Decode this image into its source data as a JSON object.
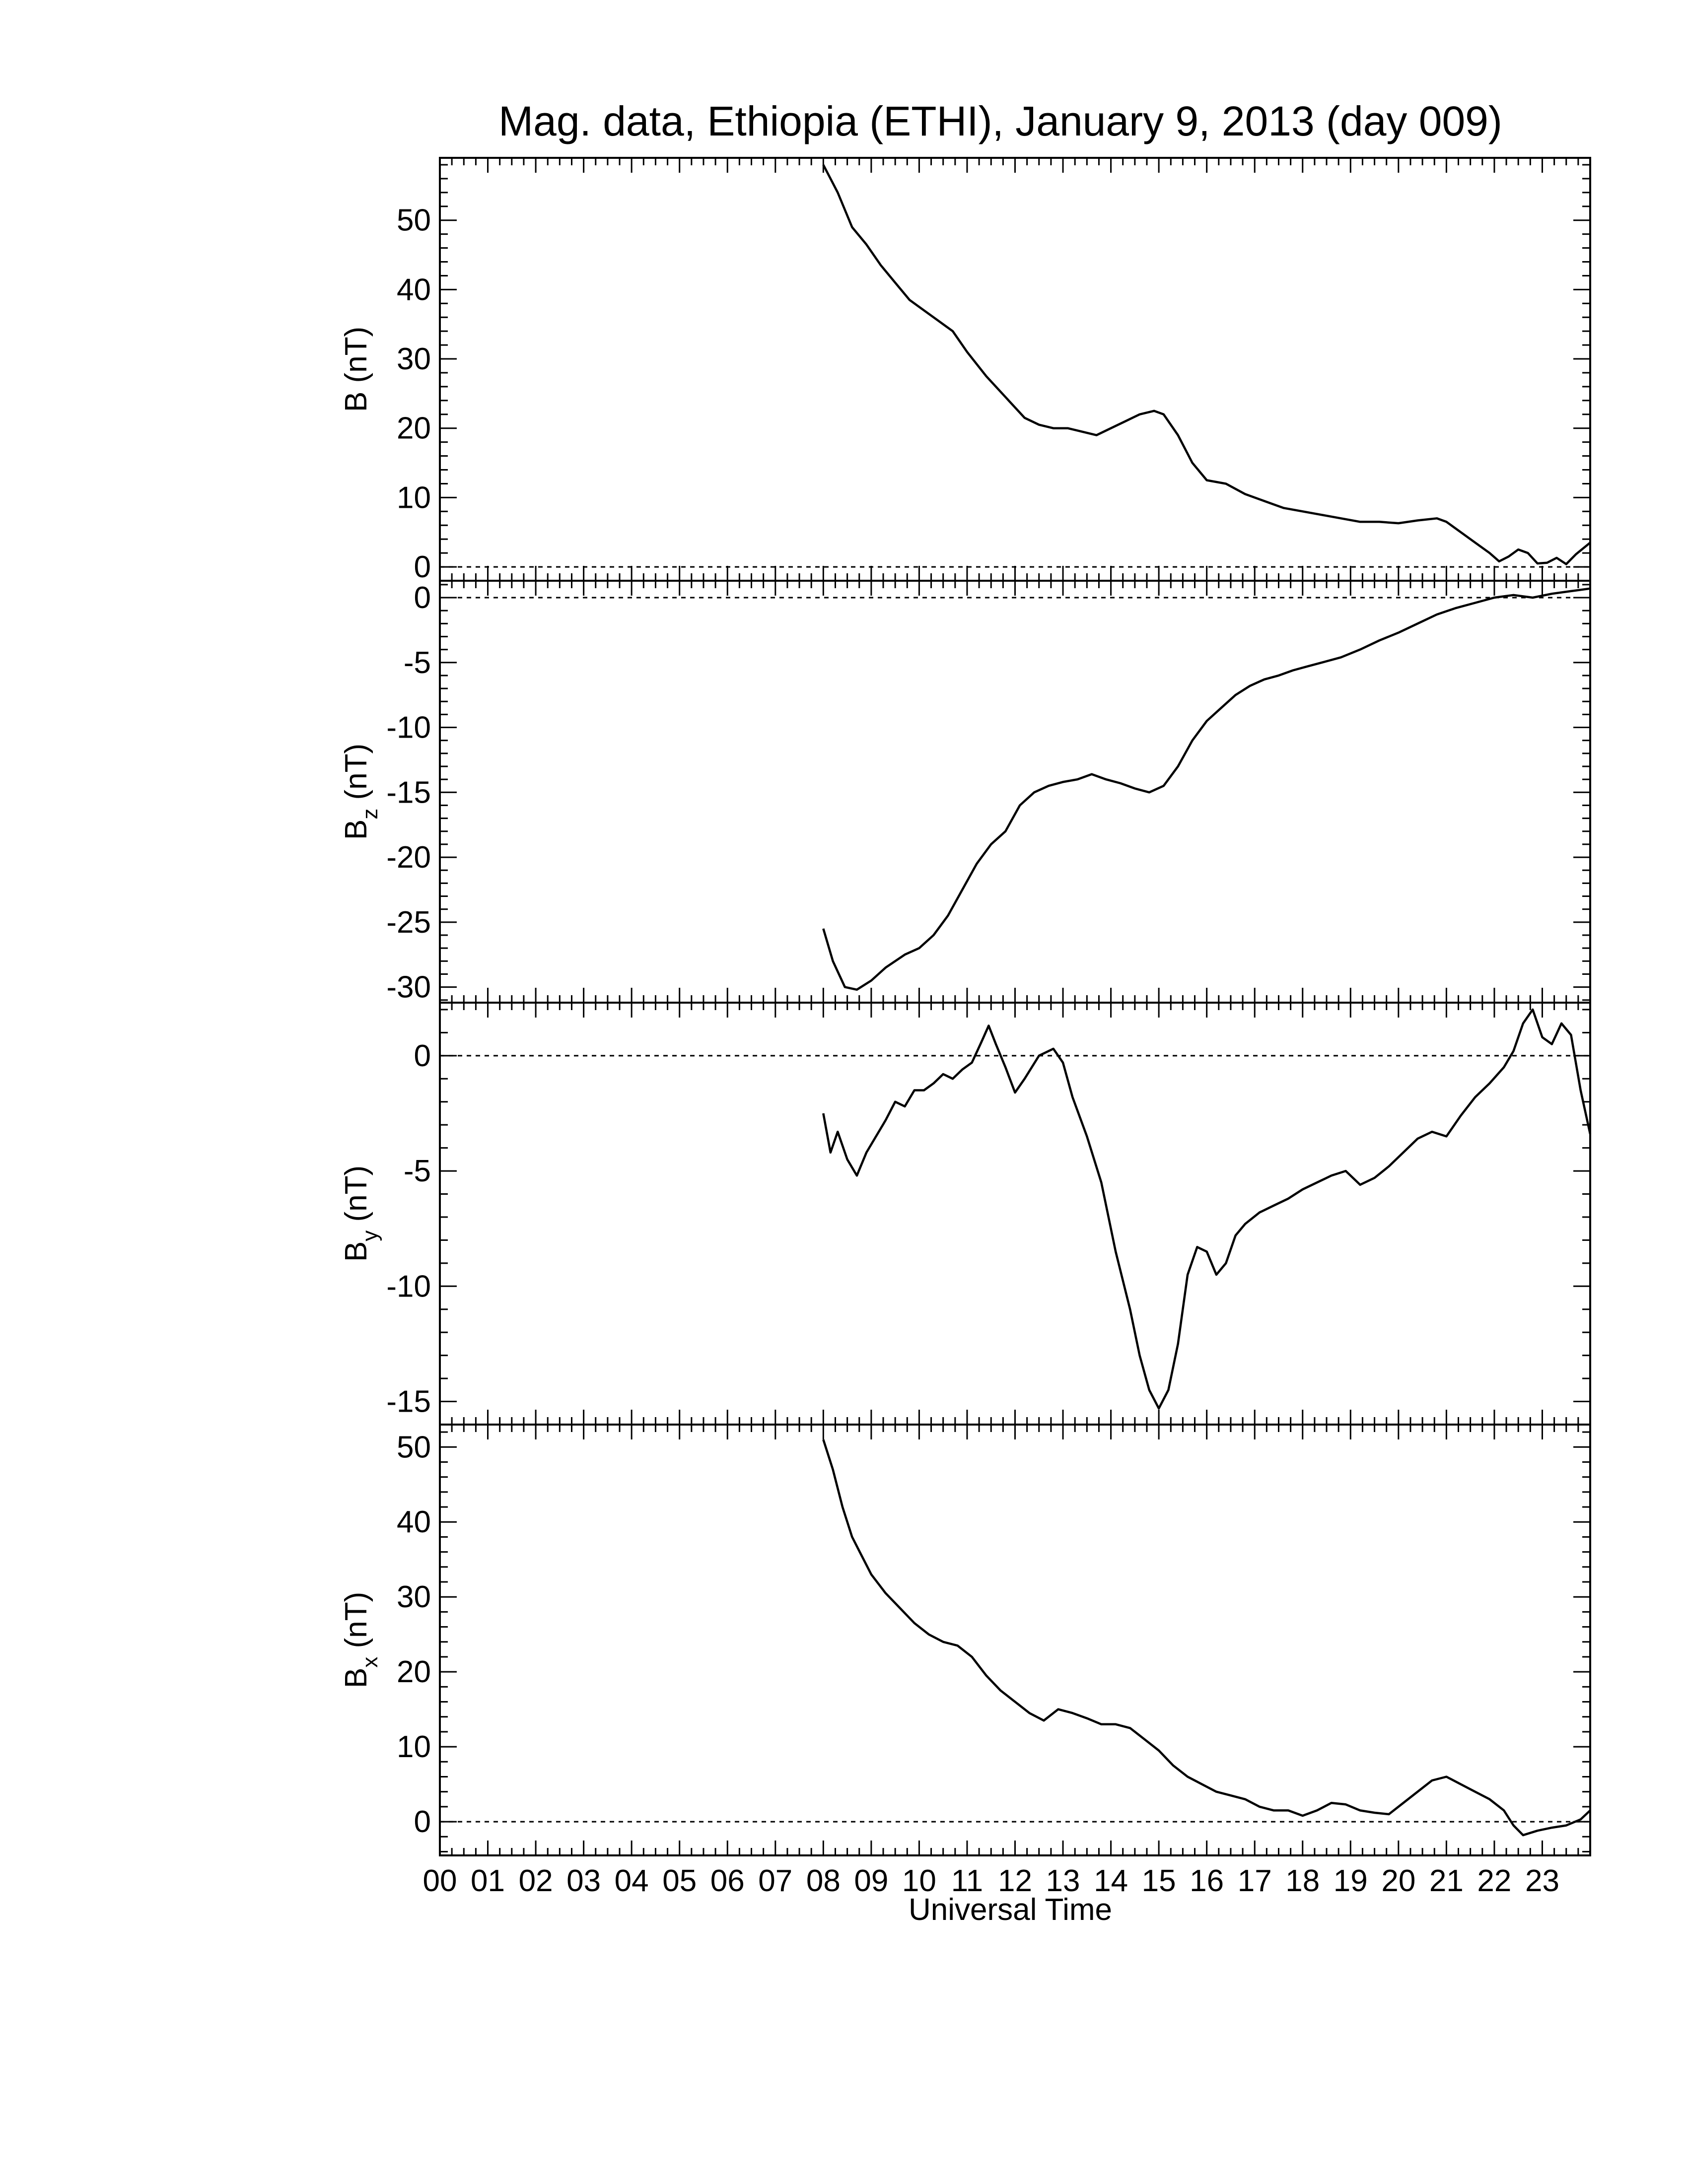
{
  "chart_data": {
    "type": "line",
    "title": "Mag. data, Ethiopia (ETHI), January 9, 2013 (day 009)",
    "xlabel": "Universal Time",
    "xlim": [
      0,
      24
    ],
    "x_tick_labels": [
      "00",
      "01",
      "02",
      "03",
      "04",
      "05",
      "06",
      "07",
      "08",
      "09",
      "10",
      "11",
      "12",
      "13",
      "14",
      "15",
      "16",
      "17",
      "18",
      "19",
      "20",
      "21",
      "22",
      "23"
    ],
    "panels": [
      {
        "id": "B",
        "ylabel_main": "B",
        "ylabel_sub": "",
        "ylabel_unit": "(nT)",
        "ylim": [
          -2,
          59
        ],
        "yticks": [
          0,
          10,
          20,
          30,
          40,
          50
        ],
        "zero_line": true,
        "series": {
          "x": [
            8.0,
            8.3,
            8.6,
            8.9,
            9.2,
            9.5,
            9.8,
            10.1,
            10.4,
            10.7,
            11.0,
            11.4,
            11.8,
            12.2,
            12.5,
            12.8,
            13.1,
            13.4,
            13.7,
            14.0,
            14.3,
            14.6,
            14.9,
            15.1,
            15.4,
            15.7,
            16.0,
            16.4,
            16.8,
            17.2,
            17.6,
            18.0,
            18.4,
            18.8,
            19.2,
            19.6,
            20.0,
            20.4,
            20.8,
            21.0,
            21.3,
            21.6,
            21.9,
            22.1,
            22.3,
            22.5,
            22.7,
            22.9,
            23.1,
            23.3,
            23.5,
            23.7,
            24.0
          ],
          "y": [
            58.0,
            54.0,
            49.0,
            46.5,
            43.5,
            41.0,
            38.5,
            37.0,
            35.5,
            34.0,
            31.0,
            27.5,
            24.5,
            21.5,
            20.5,
            20.0,
            20.0,
            19.5,
            19.0,
            20.0,
            21.0,
            22.0,
            22.5,
            22.0,
            19.0,
            15.0,
            12.5,
            12.0,
            10.5,
            9.5,
            8.5,
            8.0,
            7.5,
            7.0,
            6.5,
            6.5,
            6.3,
            6.7,
            7.0,
            6.5,
            5.0,
            3.5,
            2.0,
            0.8,
            1.5,
            2.5,
            2.0,
            0.5,
            0.6,
            1.3,
            0.4,
            1.8,
            3.5
          ]
        }
      },
      {
        "id": "Bz",
        "ylabel_main": "B",
        "ylabel_sub": "z",
        "ylabel_unit": "(nT)",
        "ylim": [
          -31.2,
          1.3
        ],
        "yticks": [
          0,
          -5,
          -10,
          -15,
          -20,
          -25,
          -30
        ],
        "zero_line": true,
        "series": {
          "x": [
            8.0,
            8.2,
            8.45,
            8.7,
            9.0,
            9.3,
            9.7,
            10.0,
            10.3,
            10.6,
            10.9,
            11.2,
            11.5,
            11.8,
            12.1,
            12.4,
            12.7,
            13.0,
            13.3,
            13.6,
            13.9,
            14.2,
            14.5,
            14.8,
            15.1,
            15.4,
            15.7,
            16.0,
            16.3,
            16.6,
            16.9,
            17.2,
            17.5,
            17.8,
            18.1,
            18.4,
            18.8,
            19.2,
            19.6,
            20.0,
            20.4,
            20.8,
            21.2,
            21.6,
            22.0,
            22.4,
            22.8,
            23.2,
            23.6,
            24.0
          ],
          "y": [
            -25.5,
            -28.0,
            -30.0,
            -30.2,
            -29.5,
            -28.5,
            -27.5,
            -27.0,
            -26.0,
            -24.5,
            -22.5,
            -20.5,
            -19.0,
            -18.0,
            -16.0,
            -15.0,
            -14.5,
            -14.2,
            -14.0,
            -13.6,
            -14.0,
            -14.3,
            -14.7,
            -15.0,
            -14.5,
            -13.0,
            -11.0,
            -9.5,
            -8.5,
            -7.5,
            -6.8,
            -6.3,
            -6.0,
            -5.6,
            -5.3,
            -5.0,
            -4.6,
            -4.0,
            -3.3,
            -2.7,
            -2.0,
            -1.3,
            -0.8,
            -0.4,
            0.0,
            0.2,
            0.0,
            0.3,
            0.5,
            0.7
          ]
        }
      },
      {
        "id": "By",
        "ylabel_main": "B",
        "ylabel_sub": "y",
        "ylabel_unit": "(nT)",
        "ylim": [
          -16,
          2.3
        ],
        "yticks": [
          0,
          -5,
          -10,
          -15
        ],
        "zero_line": true,
        "series": {
          "x": [
            8.0,
            8.15,
            8.3,
            8.5,
            8.7,
            8.9,
            9.1,
            9.3,
            9.5,
            9.7,
            9.9,
            10.1,
            10.3,
            10.5,
            10.7,
            10.9,
            11.1,
            11.3,
            11.45,
            11.6,
            11.8,
            12.0,
            12.2,
            12.5,
            12.8,
            13.0,
            13.2,
            13.5,
            13.8,
            14.1,
            14.4,
            14.6,
            14.8,
            15.0,
            15.2,
            15.4,
            15.6,
            15.8,
            16.0,
            16.2,
            16.4,
            16.6,
            16.8,
            17.1,
            17.4,
            17.7,
            18.0,
            18.3,
            18.6,
            18.9,
            19.2,
            19.5,
            19.8,
            20.1,
            20.4,
            20.7,
            21.0,
            21.3,
            21.6,
            21.9,
            22.2,
            22.4,
            22.6,
            22.8,
            23.0,
            23.2,
            23.4,
            23.6,
            23.8,
            24.0
          ],
          "y": [
            -2.5,
            -4.2,
            -3.3,
            -4.5,
            -5.2,
            -4.2,
            -3.5,
            -2.8,
            -2.0,
            -2.2,
            -1.5,
            -1.5,
            -1.2,
            -0.8,
            -1.0,
            -0.6,
            -0.3,
            0.6,
            1.3,
            0.5,
            -0.5,
            -1.6,
            -1.0,
            0.0,
            0.3,
            -0.3,
            -1.8,
            -3.5,
            -5.5,
            -8.5,
            -11.0,
            -13.0,
            -14.5,
            -15.3,
            -14.5,
            -12.5,
            -9.5,
            -8.3,
            -8.5,
            -9.5,
            -9.0,
            -7.8,
            -7.3,
            -6.8,
            -6.5,
            -6.2,
            -5.8,
            -5.5,
            -5.2,
            -5.0,
            -5.6,
            -5.3,
            -4.8,
            -4.2,
            -3.6,
            -3.3,
            -3.5,
            -2.6,
            -1.8,
            -1.2,
            -0.5,
            0.2,
            1.4,
            2.0,
            0.8,
            0.5,
            1.4,
            0.9,
            -1.5,
            -3.4
          ]
        }
      },
      {
        "id": "Bx",
        "ylabel_main": "B",
        "ylabel_sub": "x",
        "ylabel_unit": "(nT)",
        "ylim": [
          -4.5,
          53
        ],
        "yticks": [
          0,
          10,
          20,
          30,
          40,
          50
        ],
        "zero_line": true,
        "series": {
          "x": [
            8.0,
            8.2,
            8.4,
            8.6,
            8.8,
            9.0,
            9.3,
            9.6,
            9.9,
            10.2,
            10.5,
            10.8,
            11.1,
            11.4,
            11.7,
            12.0,
            12.3,
            12.6,
            12.9,
            13.2,
            13.5,
            13.8,
            14.1,
            14.4,
            14.7,
            15.0,
            15.3,
            15.6,
            15.9,
            16.2,
            16.5,
            16.8,
            17.1,
            17.4,
            17.7,
            18.0,
            18.3,
            18.6,
            18.9,
            19.2,
            19.5,
            19.8,
            20.1,
            20.4,
            20.7,
            21.0,
            21.3,
            21.6,
            21.9,
            22.2,
            22.4,
            22.6,
            22.9,
            23.2,
            23.5,
            23.8,
            24.0
          ],
          "y": [
            51.0,
            47.0,
            42.0,
            38.0,
            35.5,
            33.0,
            30.5,
            28.5,
            26.5,
            25.0,
            24.0,
            23.5,
            22.0,
            19.5,
            17.5,
            16.0,
            14.5,
            13.5,
            15.0,
            14.5,
            13.8,
            13.0,
            13.0,
            12.5,
            11.0,
            9.5,
            7.5,
            6.0,
            5.0,
            4.0,
            3.5,
            3.0,
            2.0,
            1.5,
            1.5,
            0.8,
            1.5,
            2.5,
            2.3,
            1.5,
            1.2,
            1.0,
            2.5,
            4.0,
            5.5,
            6.0,
            5.0,
            4.0,
            3.0,
            1.5,
            -0.5,
            -1.8,
            -1.2,
            -0.8,
            -0.5,
            0.3,
            1.5
          ]
        }
      }
    ]
  }
}
